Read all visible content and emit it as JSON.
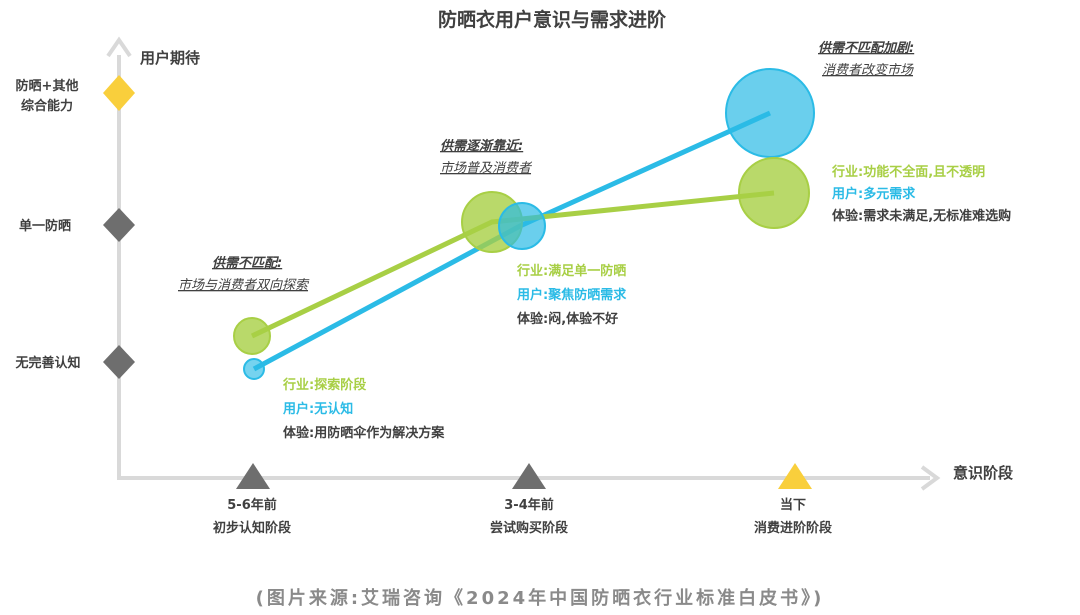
{
  "title": "防晒衣用户意识与需求进阶",
  "y_axis": {
    "label": "用户期待",
    "levels": [
      "无完善认知",
      "单一防晒"
    ],
    "top_level_lines": [
      "防晒+其他",
      "综合能力"
    ]
  },
  "x_axis": {
    "label": "意识阶段",
    "stages": [
      {
        "line1": "5-6年前",
        "line2": "初步认知阶段"
      },
      {
        "line1": "3-4年前",
        "line2": "尝试购买阶段"
      },
      {
        "line1": "当下",
        "line2": "消费进阶阶段"
      }
    ]
  },
  "series": [
    {
      "name": "行业",
      "color": "#a8cf45"
    },
    {
      "name": "用户",
      "color": "#2bbbe6"
    }
  ],
  "callouts": [
    {
      "title": "供需不匹配:",
      "subtitle": "市场与消费者双向探索"
    },
    {
      "title": "供需逐渐靠近:",
      "subtitle": "市场普及消费者"
    },
    {
      "title": "供需不匹配加剧:",
      "subtitle": "消费者改变市场"
    }
  ],
  "stage_notes": [
    {
      "industry": "行业:探索阶段",
      "user": "用户:无认知",
      "experience": "体验:用防晒伞作为解决方案"
    },
    {
      "industry": "行业:满足单一防晒",
      "user": "用户:聚焦防晒需求",
      "experience": "体验:闷,体验不好"
    },
    {
      "industry": "行业:功能不全面,且不透明",
      "user": "用户:多元需求",
      "experience": "体验:需求未满足,无标准难选购"
    }
  ],
  "colors": {
    "industry": "#a8cf45",
    "user": "#2bbbe6",
    "axis": "#d9d9d9",
    "marker": "#6e6e6e",
    "highlight": "#f9cf3c",
    "text": "#404040",
    "source": "#8a8a8a"
  },
  "source": "(图片来源:艾瑞咨询《2024年中国防晒衣行业标准白皮书》)"
}
